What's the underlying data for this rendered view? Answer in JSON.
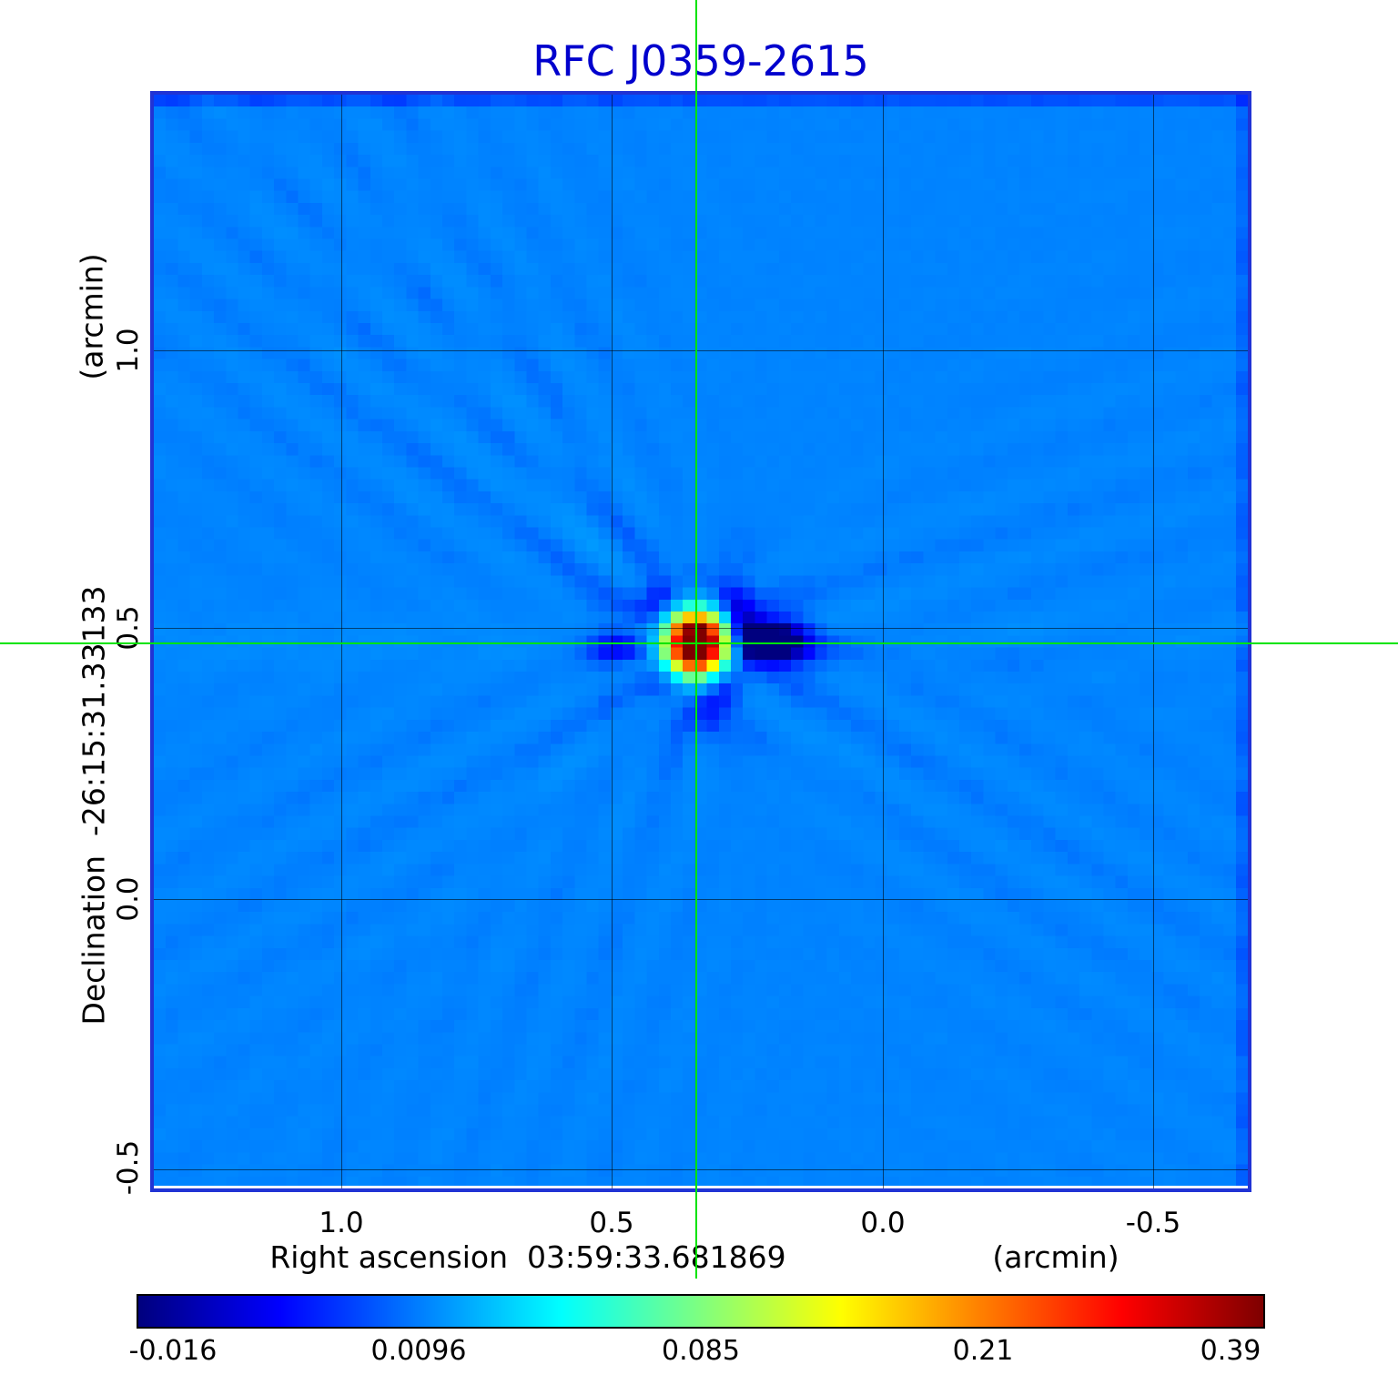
{
  "title": "RFC J0359-2615",
  "axes": {
    "y_unit": "(arcmin)",
    "y_label": "Declination  -26:15:31.33133",
    "y_ticks": [
      "1.0",
      "0.5",
      "0.0",
      "-0.5"
    ],
    "x_label": "Right ascension  03:59:33.681869",
    "x_unit": "(arcmin)",
    "x_ticks": [
      "1.0",
      "0.5",
      "0.0",
      "-0.5"
    ]
  },
  "colorbar": {
    "ticks": [
      "-0.016",
      "0.0096",
      "0.085",
      "0.21",
      "0.39"
    ]
  },
  "colors": {
    "title": "#0000cd",
    "frame": "#2133d4",
    "crosshair": "#00e400",
    "colorbar_border": "#000000"
  },
  "chart_data": {
    "type": "heatmap",
    "title": "RFC J0359-2615",
    "xlabel": "Right ascension 03:59:33.681869 (arcmin)",
    "ylabel": "Declination -26:15:31.33133 (arcmin)",
    "x_ticks": [
      1.0,
      0.5,
      0.0,
      -0.5
    ],
    "y_ticks": [
      1.0,
      0.5,
      0.0,
      -0.5
    ],
    "x_range": [
      1.353,
      -0.681
    ],
    "y_range": [
      1.477,
      -0.547
    ],
    "grid": true,
    "colormap": "jet",
    "colorbar_ticks": [
      -0.016,
      0.0096,
      0.085,
      0.21,
      0.39
    ],
    "background_level": 0.011,
    "peak_value": 0.39,
    "peak_position_arcmin": [
      0.344,
      0.462
    ],
    "crosshair": true
  }
}
